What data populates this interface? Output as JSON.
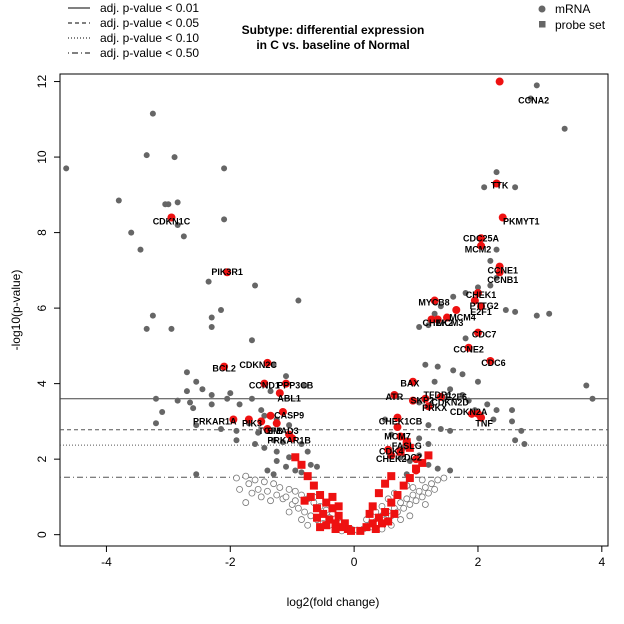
{
  "chart_data": {
    "type": "scatter",
    "title": [
      "Subtype: differential expression",
      "in C vs. baseline of Normal"
    ],
    "xlabel": "log2(fold change)",
    "ylabel": "-log10(p-value)",
    "xlim": [
      -4.75,
      4.1
    ],
    "ylim": [
      -0.3,
      12.2
    ],
    "xticks": [
      -4,
      -2,
      0,
      2,
      4
    ],
    "yticks": [
      0,
      2,
      4,
      6,
      8,
      10,
      12
    ],
    "threshold_legend": [
      {
        "label": "adj. p-value < 0.01",
        "style": "solid"
      },
      {
        "label": "adj. p-value < 0.05",
        "style": "dashed"
      },
      {
        "label": "adj. p-value < 0.10",
        "style": "dotted"
      },
      {
        "label": "adj. p-value < 0.50",
        "style": "dotdash"
      }
    ],
    "thresholds": [
      {
        "style": "solid",
        "y": 3.6
      },
      {
        "style": "dashed",
        "y": 2.78
      },
      {
        "style": "dotted",
        "y": 2.37
      },
      {
        "style": "dotdash",
        "y": 1.52
      }
    ],
    "marker_legend": [
      {
        "label": "mRNA",
        "shape": "circle"
      },
      {
        "label": "probe set",
        "shape": "square"
      }
    ],
    "colors": {
      "grey": "#666666",
      "highlight": "#ee1111",
      "open": "#777777"
    },
    "grey_points": [
      [
        -4.65,
        9.7
      ],
      [
        -3.8,
        8.85
      ],
      [
        -3.6,
        8.0
      ],
      [
        -3.45,
        7.55
      ],
      [
        -3.35,
        10.05
      ],
      [
        -3.25,
        11.15
      ],
      [
        -3.05,
        8.75
      ],
      [
        -3.0,
        8.75
      ],
      [
        -2.9,
        10.0
      ],
      [
        -2.85,
        8.8
      ],
      [
        -2.85,
        8.2
      ],
      [
        -2.75,
        7.9
      ],
      [
        -2.1,
        9.7
      ],
      [
        -2.1,
        8.35
      ],
      [
        -2.35,
        6.7
      ],
      [
        -1.6,
        6.6
      ],
      [
        -2.15,
        5.95
      ],
      [
        -2.3,
        5.75
      ],
      [
        -2.3,
        5.5
      ],
      [
        -1.65,
        5.15
      ],
      [
        -3.25,
        5.8
      ],
      [
        -3.35,
        5.45
      ],
      [
        -2.95,
        5.45
      ],
      [
        -1.35,
        3.8
      ],
      [
        -0.9,
        6.2
      ],
      [
        -1.3,
        4.5
      ],
      [
        -1.1,
        4.2
      ],
      [
        -0.8,
        3.95
      ],
      [
        -2.7,
        4.3
      ],
      [
        -2.55,
        4.05
      ],
      [
        -2.45,
        3.85
      ],
      [
        -2.7,
        3.8
      ],
      [
        -2.0,
        3.75
      ],
      [
        -3.2,
        3.6
      ],
      [
        -2.85,
        3.55
      ],
      [
        -2.65,
        3.5
      ],
      [
        -2.3,
        3.7
      ],
      [
        -2.05,
        3.6
      ],
      [
        -1.85,
        3.45
      ],
      [
        -1.65,
        3.6
      ],
      [
        -3.1,
        3.25
      ],
      [
        -2.3,
        3.45
      ],
      [
        -2.6,
        3.35
      ],
      [
        -1.5,
        3.3
      ],
      [
        -1.45,
        3.15
      ],
      [
        -1.25,
        3.05
      ],
      [
        -1.05,
        2.9
      ],
      [
        -3.2,
        2.95
      ],
      [
        -2.55,
        2.9
      ],
      [
        -2.15,
        2.8
      ],
      [
        -1.9,
        2.75
      ],
      [
        -1.7,
        2.95
      ],
      [
        -1.55,
        2.7
      ],
      [
        -1.3,
        2.5
      ],
      [
        -1.15,
        2.45
      ],
      [
        -0.85,
        2.4
      ],
      [
        -0.75,
        2.2
      ],
      [
        -1.9,
        2.5
      ],
      [
        -1.6,
        2.4
      ],
      [
        -1.45,
        2.3
      ],
      [
        -1.25,
        2.2
      ],
      [
        -1.05,
        2.05
      ],
      [
        -1.25,
        1.95
      ],
      [
        -1.1,
        1.8
      ],
      [
        -0.95,
        1.7
      ],
      [
        -0.85,
        1.65
      ],
      [
        -2.55,
        1.6
      ],
      [
        -1.4,
        1.7
      ],
      [
        -1.3,
        1.6
      ],
      [
        -0.7,
        1.85
      ],
      [
        -0.6,
        1.8
      ],
      [
        2.95,
        11.9
      ],
      [
        3.4,
        10.75
      ],
      [
        2.85,
        11.55
      ],
      [
        2.1,
        9.2
      ],
      [
        2.3,
        9.6
      ],
      [
        2.6,
        9.2
      ],
      [
        2.3,
        7.55
      ],
      [
        2.2,
        7.25
      ],
      [
        2.3,
        6.8
      ],
      [
        2.2,
        6.6
      ],
      [
        2.0,
        6.55
      ],
      [
        1.8,
        6.4
      ],
      [
        1.6,
        6.3
      ],
      [
        1.4,
        6.05
      ],
      [
        1.3,
        5.85
      ],
      [
        2.45,
        5.95
      ],
      [
        2.6,
        5.9
      ],
      [
        2.95,
        5.8
      ],
      [
        3.15,
        5.85
      ],
      [
        1.2,
        5.55
      ],
      [
        1.05,
        5.5
      ],
      [
        1.8,
        5.2
      ],
      [
        1.15,
        4.5
      ],
      [
        1.35,
        4.45
      ],
      [
        1.6,
        4.35
      ],
      [
        1.75,
        4.25
      ],
      [
        1.3,
        4.05
      ],
      [
        2.0,
        4.05
      ],
      [
        3.75,
        3.95
      ],
      [
        3.85,
        3.6
      ],
      [
        1.55,
        3.85
      ],
      [
        1.75,
        3.7
      ],
      [
        1.45,
        3.6
      ],
      [
        1.05,
        3.5
      ],
      [
        1.85,
        3.55
      ],
      [
        2.15,
        3.45
      ],
      [
        1.95,
        3.3
      ],
      [
        2.3,
        3.3
      ],
      [
        2.55,
        3.3
      ],
      [
        2.05,
        3.15
      ],
      [
        2.25,
        3.05
      ],
      [
        2.55,
        3.0
      ],
      [
        0.5,
        3.05
      ],
      [
        0.7,
        2.85
      ],
      [
        1.2,
        2.9
      ],
      [
        1.4,
        2.8
      ],
      [
        1.55,
        2.75
      ],
      [
        2.7,
        2.75
      ],
      [
        0.6,
        2.65
      ],
      [
        0.85,
        2.5
      ],
      [
        1.05,
        2.55
      ],
      [
        1.2,
        2.4
      ],
      [
        0.8,
        2.3
      ],
      [
        2.6,
        2.5
      ],
      [
        2.75,
        2.4
      ],
      [
        0.75,
        2.05
      ],
      [
        0.9,
        1.95
      ],
      [
        1.05,
        2.1
      ],
      [
        1.2,
        1.85
      ],
      [
        1.35,
        1.75
      ],
      [
        1.55,
        1.7
      ],
      [
        1.0,
        1.75
      ],
      [
        0.85,
        1.6
      ]
    ],
    "open_points": [
      [
        -1.9,
        1.5
      ],
      [
        -1.75,
        1.55
      ],
      [
        -1.6,
        1.45
      ],
      [
        -1.45,
        1.4
      ],
      [
        -1.3,
        1.35
      ],
      [
        -1.2,
        1.25
      ],
      [
        -1.05,
        1.2
      ],
      [
        -0.95,
        1.15
      ],
      [
        -0.85,
        1.05
      ],
      [
        -0.75,
        0.95
      ],
      [
        -0.65,
        0.85
      ],
      [
        -0.55,
        0.75
      ],
      [
        -0.45,
        0.65
      ],
      [
        -0.35,
        0.55
      ],
      [
        -0.25,
        0.45
      ],
      [
        -0.15,
        0.3
      ],
      [
        -0.05,
        0.15
      ],
      [
        0.05,
        0.12
      ],
      [
        -1.85,
        1.2
      ],
      [
        -1.65,
        1.1
      ],
      [
        -1.5,
        1.0
      ],
      [
        -1.35,
        0.9
      ],
      [
        -1.15,
        0.95
      ],
      [
        -1.0,
        0.8
      ],
      [
        -0.9,
        0.7
      ],
      [
        -0.8,
        0.6
      ],
      [
        -0.7,
        0.5
      ],
      [
        -0.6,
        0.4
      ],
      [
        -0.5,
        0.3
      ],
      [
        -0.4,
        0.25
      ],
      [
        -0.3,
        0.2
      ],
      [
        -0.2,
        0.1
      ],
      [
        -1.7,
        1.35
      ],
      [
        -1.55,
        1.2
      ],
      [
        -1.4,
        1.15
      ],
      [
        -1.25,
        1.05
      ],
      [
        -1.1,
        1.0
      ],
      [
        -0.95,
        0.9
      ],
      [
        -1.75,
        0.85
      ],
      [
        -0.65,
        1.0
      ],
      [
        -0.5,
        0.55
      ],
      [
        -0.4,
        0.45
      ],
      [
        -1.05,
        0.6
      ],
      [
        -0.85,
        0.4
      ],
      [
        -0.75,
        0.25
      ],
      [
        0.15,
        0.15
      ],
      [
        0.25,
        0.25
      ],
      [
        0.35,
        0.35
      ],
      [
        0.45,
        0.5
      ],
      [
        0.55,
        0.6
      ],
      [
        0.65,
        0.7
      ],
      [
        0.75,
        0.85
      ],
      [
        0.85,
        0.95
      ],
      [
        0.95,
        1.05
      ],
      [
        1.05,
        1.15
      ],
      [
        1.15,
        1.25
      ],
      [
        1.25,
        1.35
      ],
      [
        1.35,
        1.45
      ],
      [
        1.45,
        1.5
      ],
      [
        0.3,
        0.2
      ],
      [
        0.4,
        0.3
      ],
      [
        0.5,
        0.4
      ],
      [
        0.6,
        0.5
      ],
      [
        0.7,
        0.6
      ],
      [
        0.8,
        0.7
      ],
      [
        0.9,
        0.8
      ],
      [
        1.0,
        0.9
      ],
      [
        1.1,
        1.0
      ],
      [
        1.2,
        1.1
      ],
      [
        1.3,
        1.2
      ],
      [
        0.2,
        0.4
      ],
      [
        0.45,
        0.75
      ],
      [
        0.65,
        1.1
      ],
      [
        0.85,
        1.3
      ],
      [
        1.1,
        1.45
      ],
      [
        0.55,
        0.95
      ],
      [
        0.95,
        1.25
      ],
      [
        0.35,
        0.6
      ],
      [
        0.75,
        0.4
      ],
      [
        0.6,
        0.25
      ],
      [
        0.45,
        0.15
      ],
      [
        0.25,
        0.55
      ],
      [
        1.15,
        0.8
      ],
      [
        0.9,
        0.5
      ]
    ],
    "red_squares": [
      [
        -0.95,
        2.05
      ],
      [
        -0.85,
        1.85
      ],
      [
        -0.75,
        1.55
      ],
      [
        -0.65,
        1.3
      ],
      [
        -0.55,
        1.05
      ],
      [
        -0.45,
        0.85
      ],
      [
        -0.35,
        0.7
      ],
      [
        -0.25,
        0.5
      ],
      [
        -0.15,
        0.3
      ],
      [
        -0.1,
        0.15
      ],
      [
        -0.05,
        0.1
      ],
      [
        -0.7,
        1.0
      ],
      [
        -0.6,
        0.7
      ],
      [
        -0.5,
        0.55
      ],
      [
        -0.4,
        0.4
      ],
      [
        -0.3,
        0.3
      ],
      [
        -0.2,
        0.2
      ],
      [
        -0.8,
        0.9
      ],
      [
        -0.6,
        0.45
      ],
      [
        -0.45,
        0.25
      ],
      [
        -0.3,
        0.15
      ],
      [
        -0.55,
        0.2
      ],
      [
        -0.35,
        1.0
      ],
      [
        -0.25,
        0.75
      ],
      [
        0.1,
        0.1
      ],
      [
        0.2,
        0.2
      ],
      [
        0.3,
        0.3
      ],
      [
        0.4,
        0.45
      ],
      [
        0.5,
        0.6
      ],
      [
        0.6,
        0.85
      ],
      [
        0.7,
        1.05
      ],
      [
        0.8,
        1.3
      ],
      [
        0.9,
        1.5
      ],
      [
        1.0,
        1.75
      ],
      [
        1.1,
        1.9
      ],
      [
        1.2,
        2.1
      ],
      [
        0.35,
        0.15
      ],
      [
        0.45,
        0.3
      ],
      [
        0.55,
        0.35
      ],
      [
        0.65,
        0.55
      ],
      [
        0.4,
        1.1
      ],
      [
        0.5,
        1.35
      ],
      [
        0.6,
        1.55
      ],
      [
        0.25,
        0.55
      ],
      [
        0.75,
        2.2
      ],
      [
        0.9,
        2.3
      ],
      [
        0.85,
        2.45
      ],
      [
        0.3,
        0.75
      ]
    ],
    "red_circles": [
      [
        2.35,
        12.0
      ],
      [
        2.3,
        9.3
      ],
      [
        2.4,
        8.4
      ],
      [
        2.05,
        7.85
      ],
      [
        2.05,
        7.65
      ],
      [
        2.35,
        7.1
      ],
      [
        2.35,
        6.95
      ],
      [
        2.0,
        6.4
      ],
      [
        1.95,
        6.2
      ],
      [
        2.05,
        6.05
      ],
      [
        1.3,
        6.2
      ],
      [
        1.65,
        5.95
      ],
      [
        1.5,
        5.75
      ],
      [
        1.25,
        5.7
      ],
      [
        1.35,
        5.7
      ],
      [
        2.0,
        5.35
      ],
      [
        1.85,
        4.95
      ],
      [
        2.2,
        4.6
      ],
      [
        -1.4,
        4.55
      ],
      [
        -2.1,
        4.45
      ],
      [
        -1.45,
        4.0
      ],
      [
        -1.1,
        4.0
      ],
      [
        -1.2,
        3.75
      ],
      [
        -2.05,
        6.95
      ],
      [
        -2.95,
        8.4
      ],
      [
        0.95,
        4.05
      ],
      [
        0.65,
        3.7
      ],
      [
        0.95,
        3.55
      ],
      [
        1.15,
        3.6
      ],
      [
        1.4,
        3.65
      ],
      [
        1.2,
        3.4
      ],
      [
        1.9,
        3.2
      ],
      [
        2.0,
        3.2
      ],
      [
        2.05,
        3.1
      ],
      [
        0.7,
        3.1
      ],
      [
        0.75,
        2.6
      ],
      [
        0.85,
        2.45
      ],
      [
        1.0,
        1.7
      ],
      [
        -1.95,
        3.05
      ],
      [
        -1.7,
        3.05
      ],
      [
        -1.5,
        3.0
      ],
      [
        -1.35,
        3.15
      ],
      [
        -1.15,
        3.25
      ],
      [
        -1.25,
        2.95
      ],
      [
        -1.4,
        2.8
      ],
      [
        -1.05,
        2.65
      ],
      [
        -1.0,
        2.55
      ],
      [
        0.7,
        2.85
      ],
      [
        0.55,
        2.25
      ],
      [
        0.6,
        2.1
      ],
      [
        1.0,
        2.0
      ]
    ],
    "annotations": [
      {
        "text": "CCNA2",
        "x": 2.9,
        "y": 11.5
      },
      {
        "text": "TTK",
        "x": 2.35,
        "y": 9.25
      },
      {
        "text": "PKMYT1",
        "x": 2.7,
        "y": 8.3
      },
      {
        "text": "CDC25A",
        "x": 2.05,
        "y": 7.85
      },
      {
        "text": "MCM2",
        "x": 2.0,
        "y": 7.55
      },
      {
        "text": "CCNE1",
        "x": 2.4,
        "y": 7.0
      },
      {
        "text": "CCNB1",
        "x": 2.4,
        "y": 6.75
      },
      {
        "text": "CHEK1",
        "x": 2.05,
        "y": 6.35
      },
      {
        "text": "PTTG2",
        "x": 2.1,
        "y": 6.05
      },
      {
        "text": "E2F1",
        "x": 2.05,
        "y": 5.9
      },
      {
        "text": "MYC",
        "x": 1.2,
        "y": 6.15
      },
      {
        "text": "B8",
        "x": 1.45,
        "y": 6.15
      },
      {
        "text": "MCM4",
        "x": 1.75,
        "y": 5.75
      },
      {
        "text": "CHEK2",
        "x": 1.35,
        "y": 5.6
      },
      {
        "text": "MCM3",
        "x": 1.55,
        "y": 5.6
      },
      {
        "text": "CDC7",
        "x": 2.1,
        "y": 5.3
      },
      {
        "text": "CCNE2",
        "x": 1.85,
        "y": 4.9
      },
      {
        "text": "CDC6",
        "x": 2.25,
        "y": 4.55
      },
      {
        "text": "CDKN1C",
        "x": -2.95,
        "y": 8.3
      },
      {
        "text": "PIK3R1",
        "x": -2.05,
        "y": 6.95
      },
      {
        "text": "BCL2",
        "x": -2.1,
        "y": 4.4
      },
      {
        "text": "CDKN2C",
        "x": -1.55,
        "y": 4.5
      },
      {
        "text": "CCND1",
        "x": -1.45,
        "y": 3.95
      },
      {
        "text": "PPP3CB",
        "x": -0.95,
        "y": 3.95
      },
      {
        "text": "ABL1",
        "x": -1.05,
        "y": 3.6
      },
      {
        "text": "CASP9",
        "x": -1.05,
        "y": 3.15
      },
      {
        "text": "PRKAR1A",
        "x": -2.25,
        "y": 3.0
      },
      {
        "text": "PIK3",
        "x": -1.65,
        "y": 2.95
      },
      {
        "text": "TGFB",
        "x": -1.35,
        "y": 2.75
      },
      {
        "text": "SMAD3",
        "x": -1.15,
        "y": 2.75
      },
      {
        "text": "PRKAR1B",
        "x": -1.05,
        "y": 2.5
      },
      {
        "text": "BAX",
        "x": 0.9,
        "y": 4.0
      },
      {
        "text": "ATR",
        "x": 0.65,
        "y": 3.65
      },
      {
        "text": "TFDP1",
        "x": 1.35,
        "y": 3.7
      },
      {
        "text": "E2F6",
        "x": 1.65,
        "y": 3.65
      },
      {
        "text": "SKP2",
        "x": 1.1,
        "y": 3.55
      },
      {
        "text": "CDKN2D",
        "x": 1.55,
        "y": 3.5
      },
      {
        "text": "PRKX",
        "x": 1.3,
        "y": 3.35
      },
      {
        "text": "CDKN2A",
        "x": 1.85,
        "y": 3.25
      },
      {
        "text": "TNF",
        "x": 2.1,
        "y": 2.95
      },
      {
        "text": "CHEK1CB",
        "x": 0.75,
        "y": 3.0
      },
      {
        "text": "MCM7",
        "x": 0.7,
        "y": 2.6
      },
      {
        "text": "FASLG",
        "x": 0.85,
        "y": 2.35
      },
      {
        "text": "CDK4",
        "x": 0.6,
        "y": 2.2
      },
      {
        "text": "CHEK2",
        "x": 0.6,
        "y": 2.0
      },
      {
        "text": "DC2",
        "x": 0.95,
        "y": 2.05
      }
    ]
  }
}
